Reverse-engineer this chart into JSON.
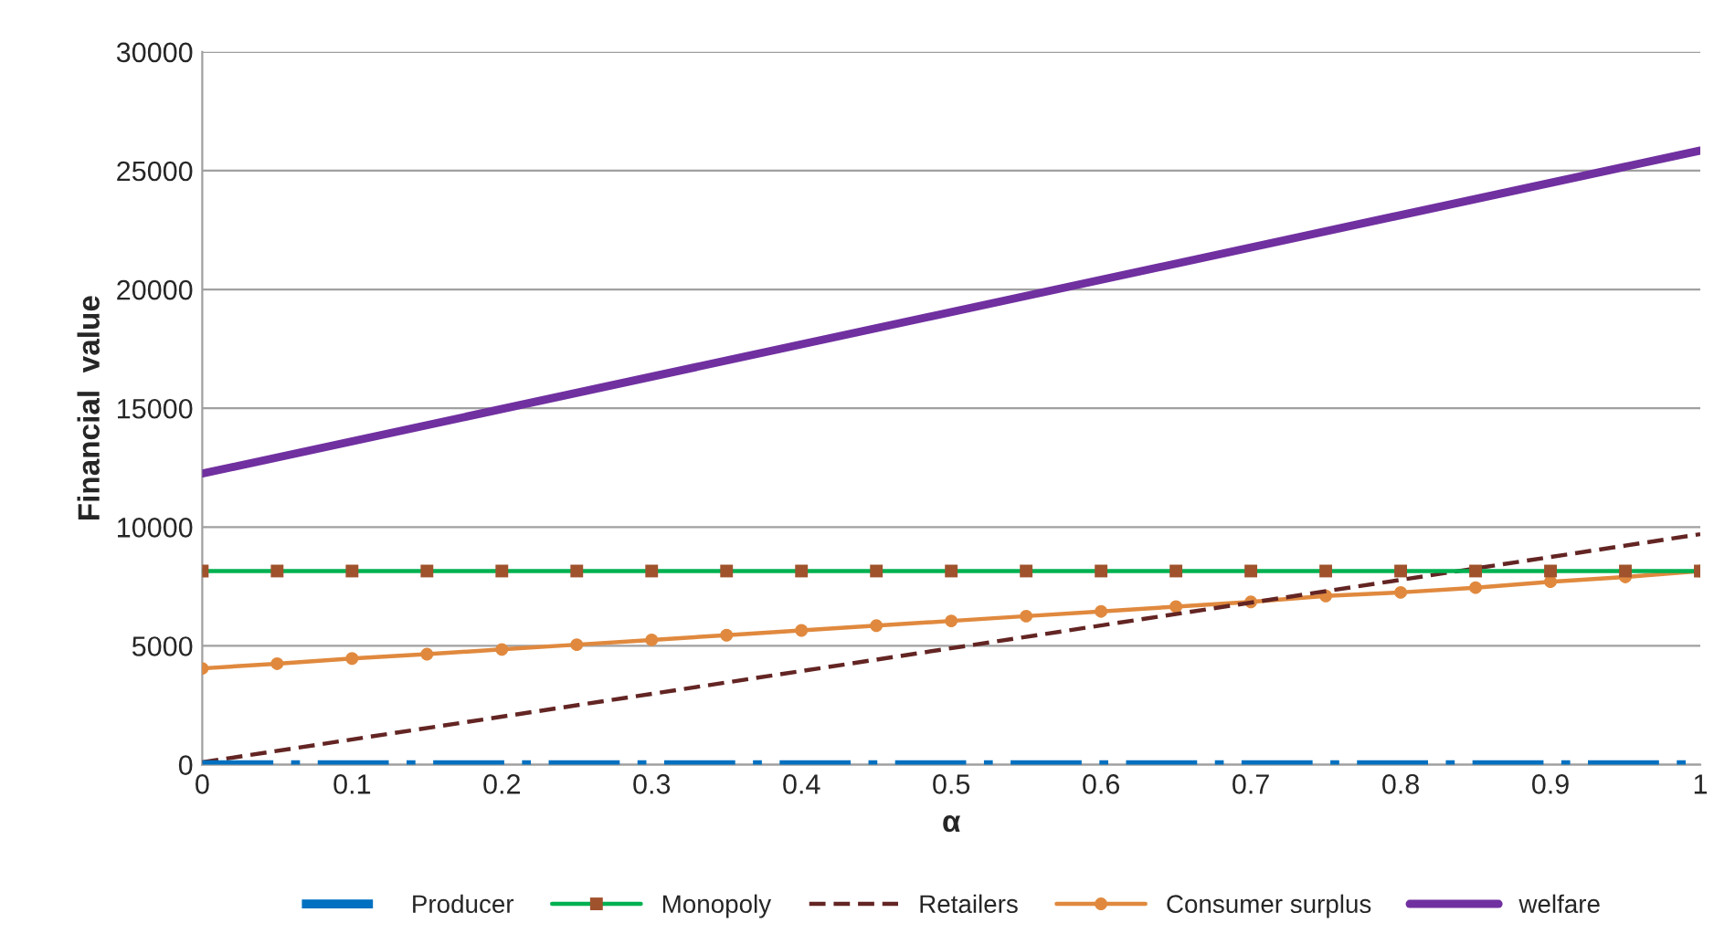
{
  "chart_data": {
    "type": "line",
    "xlabel": "α",
    "ylabel": "Financial  value",
    "xlim": [
      0,
      1
    ],
    "xticks": [
      0,
      0.1,
      0.2,
      0.3,
      0.4,
      0.5,
      0.6,
      0.7,
      0.8,
      0.9,
      1
    ],
    "ylim": [
      0,
      30000
    ],
    "yticks": [
      0,
      5000,
      10000,
      15000,
      20000,
      25000,
      30000
    ],
    "grid": "y",
    "legend": "bottom",
    "series": [
      {
        "name": "Producer",
        "color": "#0070c0",
        "line_style": "dashdot",
        "marker": "none",
        "x": [
          0,
          1
        ],
        "values": [
          0,
          0
        ]
      },
      {
        "name": "Monopoly",
        "color": "#00b050",
        "marker": "square",
        "line_style": "solid",
        "x": [
          0,
          0.05,
          0.1,
          0.15,
          0.2,
          0.25,
          0.3,
          0.35,
          0.4,
          0.45,
          0.5,
          0.55,
          0.6,
          0.65,
          0.7,
          0.75,
          0.8,
          0.85,
          0.9,
          0.95,
          1
        ],
        "values": [
          8150,
          8150,
          8150,
          8150,
          8150,
          8150,
          8150,
          8150,
          8150,
          8150,
          8150,
          8150,
          8150,
          8150,
          8150,
          8150,
          8150,
          8150,
          8150,
          8150,
          8150
        ]
      },
      {
        "name": "Retailers",
        "color": "#632523",
        "line_style": "dashed",
        "marker": "none",
        "x": [
          0,
          1
        ],
        "values": [
          100,
          9700
        ]
      },
      {
        "name": "Consumer surplus",
        "color": "#e0893e",
        "marker": "circle",
        "line_style": "solid",
        "x": [
          0,
          0.05,
          0.1,
          0.15,
          0.2,
          0.25,
          0.3,
          0.35,
          0.4,
          0.45,
          0.5,
          0.55,
          0.6,
          0.65,
          0.7,
          0.75,
          0.8,
          0.85,
          0.9,
          0.95,
          1
        ],
        "values": [
          4050,
          4250,
          4470,
          4650,
          4850,
          5050,
          5250,
          5450,
          5650,
          5850,
          6050,
          6250,
          6450,
          6650,
          6850,
          7100,
          7250,
          7450,
          7700,
          7900,
          8150
        ]
      },
      {
        "name": "welfare",
        "color": "#7030a0",
        "line_style": "solid",
        "marker": "none",
        "x": [
          0,
          1
        ],
        "values": [
          12250,
          25850
        ]
      }
    ]
  }
}
